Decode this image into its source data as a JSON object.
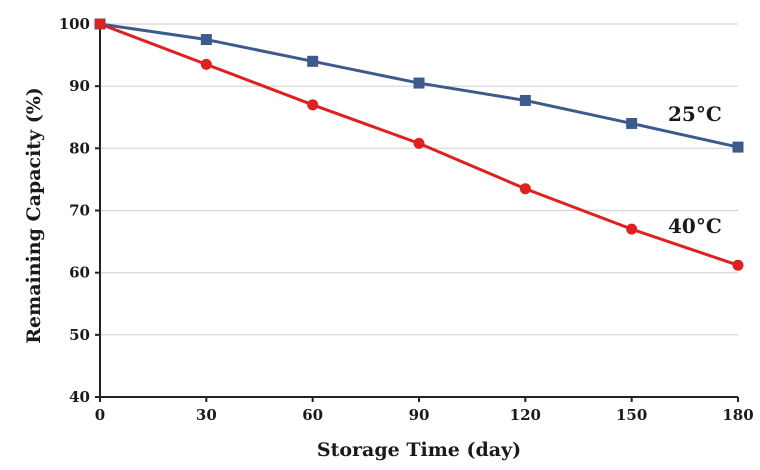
{
  "chart_data": {
    "type": "line",
    "xlabel": "Storage Time (day)",
    "ylabel": "Remaining Capacity (%)",
    "xlim": [
      0,
      180
    ],
    "ylim": [
      40,
      100
    ],
    "x_ticks": [
      0,
      30,
      60,
      90,
      120,
      150,
      180
    ],
    "y_ticks": [
      40,
      50,
      60,
      70,
      80,
      90,
      100
    ],
    "grid": "horizontal",
    "legend": "inline labels near line ends",
    "x": [
      0,
      30,
      60,
      90,
      120,
      150,
      180
    ],
    "series": [
      {
        "name": "25°C",
        "color": "#3d5a8c",
        "marker": "square",
        "values": [
          100,
          97.5,
          94,
          90.5,
          87.7,
          84,
          80.2
        ]
      },
      {
        "name": "40°C",
        "color": "#e02020",
        "marker": "circle",
        "values": [
          100,
          93.5,
          87,
          80.8,
          73.5,
          67,
          61.2
        ]
      }
    ]
  }
}
